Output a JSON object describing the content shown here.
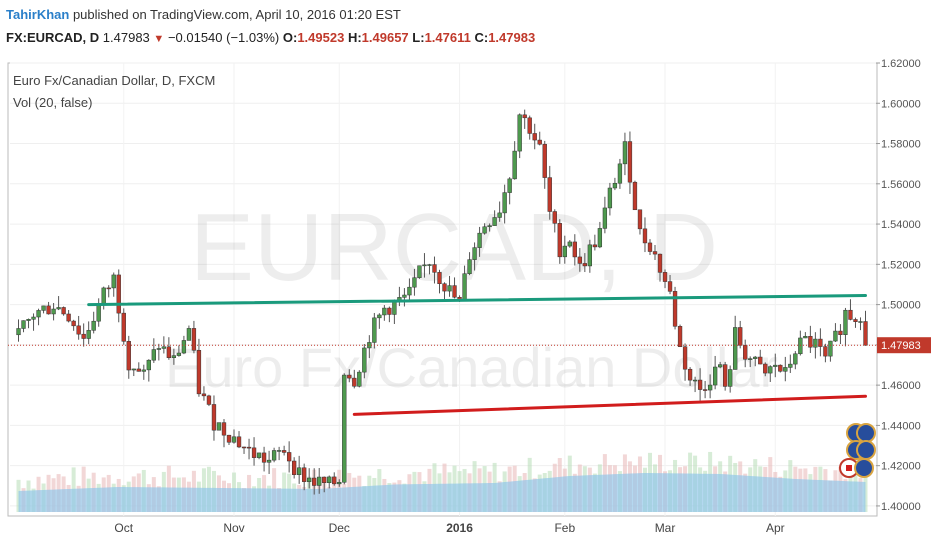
{
  "header": {
    "author": "TahirKhan",
    "published_text": "published on TradingView.com, April 10, 2016 01:20 EST",
    "symbol": "FX:EURCAD, D",
    "last": "1.47983",
    "change": "−0.01540 (−1.03%)",
    "o_label": "O:",
    "o_value": "1.49523",
    "h_label": "H:",
    "h_value": "1.49657",
    "l_label": "L:",
    "l_value": "1.47611",
    "c_label": "C:",
    "c_value": "1.47983"
  },
  "legend": {
    "main": "Euro Fx/Canadian Dollar, D, FXCM",
    "volume": "Vol (20, false)"
  },
  "watermark": {
    "ticker": "EURCAD, D",
    "name": "Euro Fx/Canadian Dollar"
  },
  "colors": {
    "up": "#4e9a4e",
    "down": "#c0392b",
    "resistance": "#1a9a7c",
    "support": "#d11c1c",
    "volume": "#8ec5ea"
  },
  "chart_data": {
    "type": "candlestick",
    "title": "Euro Fx/Canadian Dollar, D, FXCM",
    "ylim": [
      1.395,
      1.62
    ],
    "y_ticks": [
      "1.62000",
      "1.60000",
      "1.58000",
      "1.56000",
      "1.54000",
      "1.52000",
      "1.50000",
      "1.48000",
      "1.46000",
      "1.44000",
      "1.42000",
      "1.40000"
    ],
    "x_ticks": [
      {
        "label": "Oct",
        "index": 21,
        "bold": false
      },
      {
        "label": "Nov",
        "index": 43,
        "bold": false
      },
      {
        "label": "Dec",
        "index": 64,
        "bold": false
      },
      {
        "label": "2016",
        "index": 88,
        "bold": true
      },
      {
        "label": "Feb",
        "index": 109,
        "bold": false
      },
      {
        "label": "Mar",
        "index": 129,
        "bold": false
      },
      {
        "label": "Apr",
        "index": 151,
        "bold": false
      }
    ],
    "last_price": 1.47983,
    "last_price_label": "1.47983",
    "anchors": [
      [
        0,
        1.485
      ],
      [
        3,
        1.495
      ],
      [
        7,
        1.5
      ],
      [
        10,
        1.495
      ],
      [
        13,
        1.483
      ],
      [
        17,
        1.505
      ],
      [
        19,
        1.513
      ],
      [
        22,
        1.472
      ],
      [
        25,
        1.465
      ],
      [
        28,
        1.48
      ],
      [
        31,
        1.472
      ],
      [
        34,
        1.488
      ],
      [
        36,
        1.458
      ],
      [
        39,
        1.442
      ],
      [
        42,
        1.436
      ],
      [
        46,
        1.427
      ],
      [
        50,
        1.422
      ],
      [
        53,
        1.428
      ],
      [
        56,
        1.416
      ],
      [
        59,
        1.412
      ],
      [
        62,
        1.41
      ],
      [
        64,
        1.413
      ],
      [
        65,
        1.468
      ],
      [
        67,
        1.463
      ],
      [
        70,
        1.485
      ],
      [
        73,
        1.498
      ],
      [
        75,
        1.5
      ],
      [
        78,
        1.505
      ],
      [
        80,
        1.515
      ],
      [
        82,
        1.522
      ],
      [
        85,
        1.51
      ],
      [
        88,
        1.5
      ],
      [
        90,
        1.525
      ],
      [
        93,
        1.54
      ],
      [
        96,
        1.548
      ],
      [
        98,
        1.565
      ],
      [
        100,
        1.595
      ],
      [
        102,
        1.588
      ],
      [
        104,
        1.577
      ],
      [
        106,
        1.545
      ],
      [
        108,
        1.528
      ],
      [
        110,
        1.533
      ],
      [
        112,
        1.518
      ],
      [
        114,
        1.527
      ],
      [
        116,
        1.536
      ],
      [
        118,
        1.555
      ],
      [
        120,
        1.57
      ],
      [
        121,
        1.577
      ],
      [
        122,
        1.565
      ],
      [
        124,
        1.535
      ],
      [
        126,
        1.53
      ],
      [
        128,
        1.518
      ],
      [
        130,
        1.505
      ],
      [
        132,
        1.478
      ],
      [
        134,
        1.463
      ],
      [
        136,
        1.458
      ],
      [
        138,
        1.464
      ],
      [
        140,
        1.47
      ],
      [
        141,
        1.456
      ],
      [
        143,
        1.485
      ],
      [
        145,
        1.476
      ],
      [
        147,
        1.47
      ],
      [
        149,
        1.465
      ],
      [
        151,
        1.47
      ],
      [
        153,
        1.465
      ],
      [
        155,
        1.478
      ],
      [
        157,
        1.482
      ],
      [
        159,
        1.48
      ],
      [
        161,
        1.472
      ],
      [
        163,
        1.483
      ],
      [
        165,
        1.496
      ],
      [
        167,
        1.494
      ],
      [
        168,
        1.496
      ],
      [
        169,
        1.4798
      ]
    ],
    "volume_anchors": [
      [
        0,
        0.42
      ],
      [
        20,
        0.5
      ],
      [
        40,
        0.48
      ],
      [
        60,
        0.46
      ],
      [
        75,
        0.55
      ],
      [
        95,
        0.58
      ],
      [
        110,
        0.72
      ],
      [
        125,
        0.78
      ],
      [
        140,
        0.76
      ],
      [
        155,
        0.66
      ],
      [
        169,
        0.6
      ]
    ],
    "trendlines": [
      {
        "name": "resistance",
        "from": [
          14,
          1.5
        ],
        "to": [
          169,
          1.5045
        ]
      },
      {
        "name": "support",
        "from": [
          67,
          1.4455
        ],
        "to": [
          169,
          1.4545
        ]
      }
    ]
  }
}
